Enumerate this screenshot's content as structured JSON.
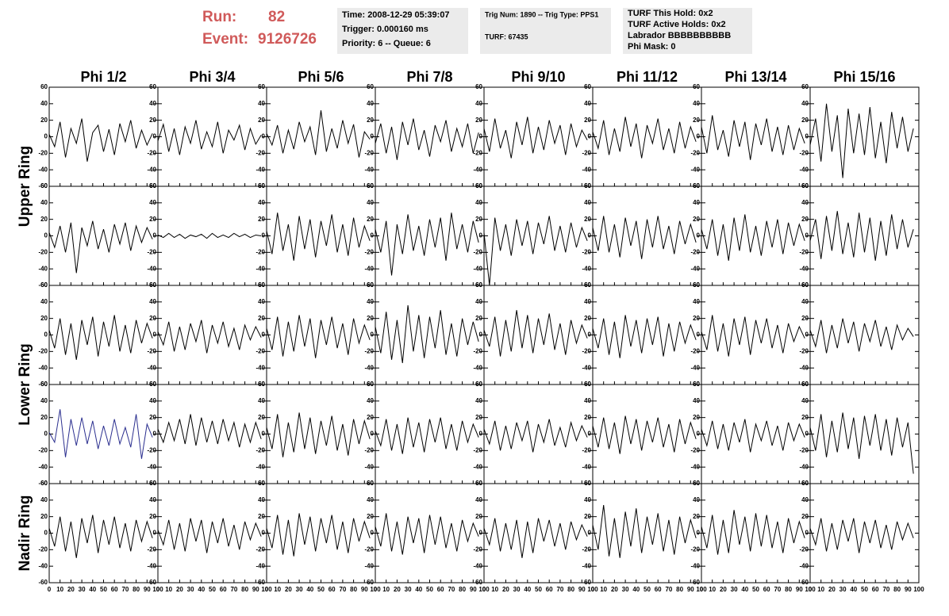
{
  "header": {
    "run_label": "Run:",
    "run": "82",
    "event_label": "Event:",
    "event": "9126726",
    "boxes": [
      [
        "Time: 2008-12-29 05:39:07",
        "Trigger: 0.000160 ms",
        "Priority: 6 -- Queue: 6"
      ],
      [
        "Trig Num: 1890 -- Trig Type: PPS1",
        "TURF: 67435"
      ],
      [
        "TURF This Hold: 0x2",
        "TURF Active Holds: 0x2",
        "Labrador BBBBBBBBBB",
        "Phi Mask: 0"
      ]
    ]
  },
  "chart_data": {
    "type": "line",
    "columns": [
      "Phi 1/2",
      "Phi 3/4",
      "Phi 5/6",
      "Phi 7/8",
      "Phi 9/10",
      "Phi 11/12",
      "Phi 13/14",
      "Phi 15/16"
    ],
    "ring_labels": [
      "Upper Ring",
      "Lower Ring",
      "Nadir Ring"
    ],
    "x": [
      0,
      5,
      10,
      15,
      20,
      25,
      30,
      35,
      40,
      45,
      50,
      55,
      60,
      65,
      70,
      75,
      80,
      85,
      90,
      95
    ],
    "xlim": [
      0,
      100
    ],
    "xticks": [
      0,
      10,
      20,
      30,
      40,
      50,
      60,
      70,
      80,
      90,
      100
    ],
    "ylim": [
      -60,
      60
    ],
    "yticks": [
      -60,
      -40,
      -20,
      0,
      20,
      40,
      60
    ],
    "panels": [
      [
        {
          "color": "#000000",
          "values": [
            3,
            -12,
            18,
            -25,
            10,
            -8,
            22,
            -30,
            5,
            14,
            -18,
            9,
            -22,
            16,
            -6,
            20,
            -14,
            8,
            -10,
            4
          ]
        },
        {
          "color": "#000000",
          "values": [
            -5,
            15,
            -18,
            10,
            -22,
            12,
            -8,
            20,
            -15,
            6,
            -12,
            18,
            -20,
            8,
            -4,
            14,
            -16,
            10,
            -9,
            2
          ]
        },
        {
          "color": "#000000",
          "values": [
            4,
            -10,
            14,
            -20,
            8,
            -15,
            18,
            -6,
            12,
            -22,
            32,
            -18,
            10,
            -14,
            20,
            -8,
            15,
            -25,
            6,
            -3
          ]
        },
        {
          "color": "#000000",
          "values": [
            -8,
            16,
            -20,
            12,
            -28,
            18,
            -10,
            22,
            -16,
            8,
            -24,
            14,
            -6,
            20,
            -18,
            10,
            -12,
            16,
            -20,
            5
          ]
        },
        {
          "color": "#000000",
          "values": [
            10,
            -18,
            22,
            -14,
            8,
            -26,
            18,
            -10,
            24,
            -20,
            12,
            -16,
            20,
            -8,
            14,
            -22,
            16,
            -12,
            8,
            -4
          ]
        },
        {
          "color": "#000000",
          "values": [
            6,
            -14,
            20,
            -22,
            10,
            -18,
            24,
            -12,
            16,
            -26,
            14,
            -8,
            22,
            -16,
            10,
            -20,
            18,
            -14,
            12,
            -6
          ]
        },
        {
          "color": "#000000",
          "values": [
            12,
            -20,
            26,
            -16,
            8,
            -24,
            20,
            -12,
            18,
            -28,
            16,
            -10,
            22,
            -18,
            12,
            -22,
            14,
            -16,
            10,
            -8
          ]
        },
        {
          "color": "#000000",
          "values": [
            -10,
            22,
            -30,
            40,
            -18,
            26,
            -50,
            34,
            -20,
            28,
            -22,
            36,
            -26,
            18,
            -32,
            30,
            -14,
            24,
            -18,
            10
          ]
        }
      ],
      [
        {
          "color": "#000000",
          "values": [
            4,
            -14,
            12,
            -20,
            16,
            -45,
            10,
            -12,
            18,
            -16,
            8,
            -20,
            14,
            -10,
            16,
            -18,
            12,
            -8,
            10,
            -4
          ]
        },
        {
          "color": "#000000",
          "values": [
            1,
            -2,
            3,
            -2,
            2,
            -3,
            1,
            -1,
            2,
            -3,
            3,
            -2,
            1,
            -2,
            3,
            -1,
            2,
            -2,
            1,
            0
          ]
        },
        {
          "color": "#000000",
          "values": [
            6,
            -22,
            28,
            -18,
            14,
            -30,
            24,
            -16,
            20,
            -26,
            18,
            -12,
            26,
            -20,
            14,
            -24,
            22,
            -14,
            12,
            -6
          ]
        },
        {
          "color": "#000000",
          "values": [
            8,
            -20,
            18,
            -48,
            14,
            -22,
            26,
            -18,
            12,
            -24,
            20,
            -14,
            22,
            -30,
            28,
            -16,
            14,
            -20,
            18,
            -8
          ]
        },
        {
          "color": "#000000",
          "values": [
            4,
            -60,
            22,
            -18,
            14,
            -24,
            20,
            -12,
            18,
            -22,
            16,
            -10,
            24,
            -18,
            12,
            -20,
            16,
            -14,
            10,
            -6
          ]
        },
        {
          "color": "#000000",
          "values": [
            10,
            -18,
            24,
            -20,
            14,
            -26,
            22,
            -12,
            18,
            -28,
            20,
            -14,
            24,
            -16,
            12,
            -22,
            18,
            -10,
            14,
            -8
          ]
        },
        {
          "color": "#000000",
          "values": [
            8,
            -16,
            20,
            -24,
            14,
            -30,
            22,
            -18,
            26,
            -20,
            12,
            -24,
            18,
            -14,
            20,
            -22,
            16,
            -12,
            14,
            -6
          ]
        },
        {
          "color": "#000000",
          "values": [
            -6,
            20,
            -28,
            24,
            -18,
            30,
            -22,
            16,
            -26,
            28,
            -20,
            22,
            -30,
            18,
            -24,
            26,
            -16,
            20,
            -14,
            8
          ]
        }
      ],
      [
        {
          "color": "#000000",
          "values": [
            6,
            -16,
            20,
            -24,
            14,
            -30,
            18,
            -12,
            22,
            -26,
            16,
            -14,
            24,
            -20,
            12,
            -22,
            18,
            -10,
            14,
            -4
          ]
        },
        {
          "color": "#000000",
          "values": [
            4,
            -12,
            16,
            -20,
            10,
            -18,
            14,
            -8,
            18,
            -22,
            12,
            -10,
            16,
            -14,
            8,
            -18,
            12,
            -6,
            10,
            -3
          ]
        },
        {
          "color": "#000000",
          "values": [
            8,
            -18,
            22,
            -26,
            16,
            -20,
            24,
            -14,
            20,
            -28,
            18,
            -12,
            22,
            -16,
            14,
            -24,
            20,
            -10,
            12,
            -6
          ]
        },
        {
          "color": "#000000",
          "values": [
            10,
            -22,
            28,
            -30,
            18,
            -34,
            36,
            -20,
            24,
            -28,
            22,
            -16,
            30,
            -24,
            14,
            -26,
            20,
            -12,
            16,
            -8
          ]
        },
        {
          "color": "#000000",
          "values": [
            6,
            -14,
            22,
            -26,
            18,
            -20,
            30,
            -16,
            24,
            -22,
            20,
            -12,
            26,
            -18,
            14,
            -24,
            18,
            -10,
            12,
            -4
          ]
        },
        {
          "color": "#000000",
          "values": [
            8,
            -16,
            20,
            -24,
            16,
            -28,
            24,
            -14,
            18,
            -22,
            20,
            -12,
            22,
            -26,
            14,
            -20,
            16,
            -10,
            12,
            -6
          ]
        },
        {
          "color": "#000000",
          "values": [
            4,
            -18,
            24,
            -20,
            14,
            -26,
            20,
            -12,
            22,
            -24,
            18,
            -10,
            20,
            -16,
            12,
            -22,
            14,
            -8,
            10,
            -4
          ]
        },
        {
          "color": "#000000",
          "values": [
            6,
            -14,
            18,
            -22,
            12,
            -16,
            20,
            -10,
            16,
            -20,
            14,
            -8,
            18,
            -14,
            10,
            -18,
            12,
            -6,
            8,
            -2
          ]
        }
      ],
      [
        {
          "color": "#2b2f8f",
          "values": [
            2,
            -10,
            30,
            -28,
            18,
            -14,
            20,
            -12,
            16,
            -18,
            10,
            -14,
            18,
            -12,
            8,
            -16,
            24,
            -30,
            12,
            -4
          ]
        },
        {
          "color": "#000000",
          "values": [
            6,
            -10,
            14,
            -8,
            18,
            -12,
            24,
            -14,
            20,
            -10,
            16,
            -12,
            18,
            -8,
            14,
            -16,
            12,
            -10,
            14,
            -6
          ]
        },
        {
          "color": "#000000",
          "values": [
            8,
            -18,
            24,
            -28,
            14,
            -22,
            26,
            -18,
            20,
            -24,
            16,
            -14,
            22,
            -20,
            12,
            -26,
            18,
            -12,
            16,
            -6
          ]
        },
        {
          "color": "#000000",
          "values": [
            4,
            -14,
            18,
            -20,
            12,
            -24,
            20,
            -16,
            14,
            -22,
            18,
            -10,
            20,
            -18,
            12,
            -20,
            16,
            -10,
            12,
            -4
          ]
        },
        {
          "color": "#000000",
          "values": [
            6,
            -12,
            16,
            -20,
            10,
            -18,
            14,
            -8,
            16,
            -22,
            12,
            -10,
            18,
            -14,
            8,
            -16,
            14,
            -8,
            10,
            -4
          ]
        },
        {
          "color": "#000000",
          "values": [
            10,
            -16,
            20,
            -18,
            14,
            -24,
            22,
            -12,
            18,
            -20,
            16,
            -10,
            20,
            -16,
            12,
            -22,
            18,
            -12,
            14,
            -6
          ]
        },
        {
          "color": "#000000",
          "values": [
            6,
            -14,
            16,
            -18,
            12,
            -20,
            14,
            -10,
            18,
            -22,
            12,
            -8,
            16,
            -14,
            10,
            -20,
            14,
            -8,
            12,
            -4
          ]
        },
        {
          "color": "#000000",
          "values": [
            8,
            -20,
            24,
            -28,
            16,
            -22,
            26,
            -18,
            20,
            -30,
            22,
            -14,
            24,
            -20,
            18,
            -26,
            20,
            -16,
            14,
            -48
          ]
        }
      ],
      [
        {
          "color": "#000000",
          "values": [
            6,
            -16,
            20,
            -22,
            14,
            -30,
            18,
            -12,
            22,
            -24,
            16,
            -14,
            20,
            -18,
            12,
            -22,
            16,
            -10,
            14,
            -6
          ]
        },
        {
          "color": "#000000",
          "values": [
            4,
            -14,
            16,
            -20,
            12,
            -22,
            18,
            -10,
            16,
            -24,
            14,
            -12,
            18,
            -16,
            10,
            -20,
            14,
            -8,
            12,
            -4
          ]
        },
        {
          "color": "#000000",
          "values": [
            6,
            -18,
            22,
            -26,
            16,
            -28,
            24,
            -14,
            20,
            -22,
            18,
            -12,
            22,
            -20,
            14,
            -24,
            18,
            -10,
            14,
            -6
          ]
        },
        {
          "color": "#000000",
          "values": [
            8,
            -16,
            24,
            -22,
            14,
            -26,
            20,
            -12,
            18,
            -24,
            22,
            -14,
            20,
            -18,
            12,
            -22,
            16,
            -10,
            12,
            -4
          ]
        },
        {
          "color": "#000000",
          "values": [
            6,
            -14,
            18,
            -22,
            12,
            -20,
            16,
            -30,
            14,
            -24,
            18,
            -10,
            16,
            -16,
            12,
            -20,
            14,
            -8,
            10,
            -4
          ]
        },
        {
          "color": "#000000",
          "values": [
            10,
            -20,
            34,
            -28,
            18,
            -30,
            26,
            -16,
            30,
            -24,
            20,
            -14,
            24,
            -22,
            16,
            -26,
            20,
            -12,
            16,
            -6
          ]
        },
        {
          "color": "#000000",
          "values": [
            8,
            -18,
            22,
            -26,
            16,
            -24,
            28,
            -14,
            20,
            -22,
            24,
            -16,
            22,
            -18,
            14,
            -24,
            18,
            -12,
            14,
            -6
          ]
        },
        {
          "color": "#000000",
          "values": [
            6,
            -14,
            18,
            -22,
            12,
            -20,
            16,
            -10,
            18,
            -24,
            14,
            -12,
            16,
            -18,
            10,
            -20,
            14,
            -8,
            12,
            -6
          ]
        }
      ]
    ]
  }
}
